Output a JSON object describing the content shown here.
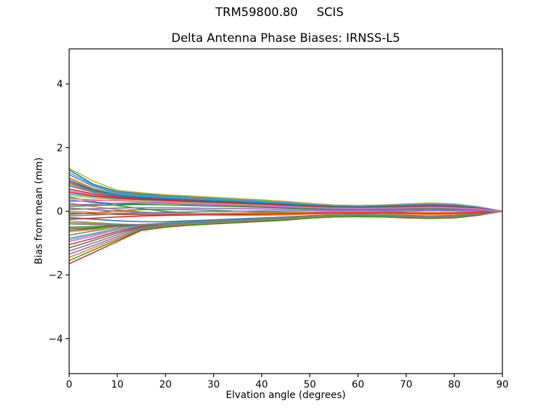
{
  "figure": {
    "suptitle": "TRM59800.80     SCIS",
    "background": "#ffffff",
    "axis_color": "#000000"
  },
  "chart_data": {
    "type": "line",
    "title": "Delta Antenna Phase Biases: IRNSS-L5",
    "xlabel": "Elvation angle (degrees)",
    "ylabel": "Bias from mean (mm)",
    "xlim": [
      0,
      90
    ],
    "ylim": [
      -5.1,
      5.1
    ],
    "xticks": [
      0,
      10,
      20,
      30,
      40,
      50,
      60,
      70,
      80,
      90
    ],
    "yticks": [
      -4,
      -2,
      0,
      2,
      4
    ],
    "grid": false,
    "legend": "none",
    "palette": [
      "#1f77b4",
      "#ff7f0e",
      "#2ca02c",
      "#d62728",
      "#9467bd",
      "#8c564b",
      "#e377c2",
      "#7f7f7f",
      "#bcbd22",
      "#17becf"
    ],
    "x": [
      0,
      5,
      10,
      15,
      20,
      25,
      30,
      35,
      40,
      45,
      50,
      55,
      60,
      65,
      70,
      75,
      80,
      85,
      90
    ],
    "series": [
      [
        1.3,
        0.85,
        0.62,
        0.55,
        0.5,
        0.46,
        0.43,
        0.39,
        0.35,
        0.3,
        0.24,
        0.19,
        0.18,
        0.19,
        0.23,
        0.25,
        0.23,
        0.14,
        0
      ],
      [
        1.05,
        0.72,
        0.55,
        0.48,
        0.44,
        0.4,
        0.37,
        0.34,
        0.31,
        0.26,
        0.21,
        0.17,
        0.15,
        0.17,
        0.2,
        0.22,
        0.2,
        0.12,
        0
      ],
      [
        -0.1,
        -0.05,
        0.02,
        0.05,
        0.06,
        0.05,
        0.03,
        0.0,
        -0.02,
        -0.03,
        -0.04,
        -0.04,
        -0.03,
        -0.02,
        0.0,
        0.02,
        0.02,
        0.01,
        0
      ],
      [
        -1.65,
        -1.3,
        -0.95,
        -0.6,
        -0.5,
        -0.44,
        -0.4,
        -0.36,
        -0.32,
        -0.28,
        -0.22,
        -0.18,
        -0.17,
        -0.18,
        -0.21,
        -0.23,
        -0.21,
        -0.13,
        0
      ],
      [
        -1.35,
        -1.08,
        -0.8,
        -0.55,
        -0.46,
        -0.41,
        -0.37,
        -0.33,
        -0.29,
        -0.25,
        -0.2,
        -0.16,
        -0.15,
        -0.16,
        -0.19,
        -0.21,
        -0.19,
        -0.12,
        0
      ],
      [
        -1.15,
        -0.92,
        -0.68,
        -0.5,
        -0.43,
        -0.38,
        -0.34,
        -0.3,
        -0.26,
        -0.22,
        -0.18,
        -0.14,
        -0.13,
        -0.14,
        -0.17,
        -0.19,
        -0.17,
        -0.1,
        0
      ],
      [
        -0.95,
        -0.78,
        -0.58,
        -0.45,
        -0.4,
        -0.36,
        -0.32,
        -0.28,
        -0.24,
        -0.2,
        -0.16,
        -0.13,
        -0.12,
        -0.13,
        -0.15,
        -0.17,
        -0.15,
        -0.09,
        0
      ],
      [
        -0.75,
        -0.62,
        -0.5,
        -0.42,
        -0.37,
        -0.33,
        -0.29,
        -0.26,
        -0.22,
        -0.19,
        -0.15,
        -0.12,
        -0.11,
        -0.12,
        -0.14,
        -0.16,
        -0.14,
        -0.08,
        0
      ],
      [
        1.35,
        0.95,
        0.66,
        0.58,
        0.52,
        0.48,
        0.44,
        0.4,
        0.36,
        0.31,
        0.25,
        0.2,
        0.18,
        0.2,
        0.23,
        0.26,
        0.23,
        0.14,
        0
      ],
      [
        1.22,
        0.82,
        0.6,
        0.52,
        0.47,
        0.43,
        0.4,
        0.36,
        0.32,
        0.28,
        0.22,
        0.18,
        0.16,
        0.18,
        0.21,
        0.23,
        0.21,
        0.13,
        0
      ],
      [
        0.8,
        0.6,
        0.48,
        0.42,
        0.38,
        0.35,
        0.32,
        0.29,
        0.26,
        0.22,
        0.18,
        0.14,
        0.13,
        0.14,
        0.17,
        0.19,
        0.17,
        0.1,
        0
      ],
      [
        0.85,
        0.63,
        0.5,
        0.44,
        0.4,
        0.36,
        0.33,
        0.3,
        0.27,
        0.23,
        0.18,
        0.15,
        0.13,
        0.15,
        0.17,
        0.19,
        0.17,
        0.11,
        0
      ],
      [
        0.45,
        0.3,
        0.18,
        0.08,
        0.0,
        -0.06,
        -0.1,
        -0.12,
        -0.12,
        -0.11,
        -0.09,
        -0.07,
        -0.06,
        -0.07,
        -0.08,
        -0.09,
        -0.08,
        -0.05,
        0
      ],
      [
        0.95,
        0.68,
        0.52,
        0.45,
        0.41,
        0.37,
        0.34,
        0.31,
        0.27,
        0.23,
        0.19,
        0.15,
        0.14,
        0.15,
        0.18,
        0.2,
        0.18,
        0.11,
        0
      ],
      [
        1.15,
        0.78,
        0.58,
        0.5,
        0.45,
        0.41,
        0.38,
        0.34,
        0.3,
        0.26,
        0.21,
        0.17,
        0.15,
        0.17,
        0.2,
        0.22,
        0.2,
        0.12,
        0
      ],
      [
        -0.6,
        -0.55,
        -0.48,
        -0.42,
        -0.38,
        -0.34,
        -0.3,
        -0.26,
        -0.23,
        -0.19,
        -0.15,
        -0.12,
        -0.11,
        -0.12,
        -0.14,
        -0.15,
        -0.14,
        -0.08,
        0
      ],
      [
        0.65,
        0.52,
        0.43,
        0.38,
        0.35,
        0.32,
        0.29,
        0.26,
        0.23,
        0.2,
        0.16,
        0.13,
        0.12,
        0.13,
        0.15,
        0.17,
        0.15,
        0.09,
        0
      ],
      [
        -0.4,
        -0.42,
        -0.44,
        -0.44,
        -0.42,
        -0.38,
        -0.33,
        -0.28,
        -0.24,
        -0.2,
        -0.16,
        -0.13,
        -0.12,
        -0.13,
        -0.15,
        -0.17,
        -0.15,
        -0.09,
        0
      ],
      [
        -0.3,
        -0.35,
        -0.4,
        -0.43,
        -0.42,
        -0.39,
        -0.34,
        -0.29,
        -0.25,
        -0.21,
        -0.17,
        -0.13,
        -0.12,
        -0.13,
        -0.16,
        -0.18,
        -0.16,
        -0.1,
        0
      ],
      [
        1.0,
        0.7,
        0.54,
        0.47,
        0.42,
        0.38,
        0.35,
        0.32,
        0.28,
        0.24,
        0.19,
        0.16,
        0.14,
        0.16,
        0.18,
        0.2,
        0.18,
        0.11,
        0
      ],
      [
        0.35,
        0.28,
        0.24,
        0.22,
        0.2,
        0.18,
        0.16,
        0.14,
        0.12,
        0.1,
        0.08,
        0.07,
        0.06,
        0.07,
        0.08,
        0.09,
        0.08,
        0.05,
        0
      ],
      [
        0.25,
        0.15,
        0.05,
        -0.02,
        -0.07,
        -0.1,
        -0.12,
        -0.13,
        -0.12,
        -0.11,
        -0.09,
        -0.07,
        -0.07,
        -0.07,
        -0.09,
        -0.1,
        -0.09,
        -0.05,
        0
      ],
      [
        0.15,
        0.18,
        0.2,
        0.21,
        0.2,
        0.19,
        0.17,
        0.15,
        0.13,
        0.11,
        0.09,
        0.07,
        0.07,
        0.07,
        0.09,
        0.1,
        0.09,
        0.05,
        0
      ],
      [
        0.7,
        0.55,
        0.45,
        0.4,
        0.36,
        0.33,
        0.3,
        0.27,
        0.24,
        0.2,
        0.16,
        0.13,
        0.12,
        0.13,
        0.16,
        0.17,
        0.16,
        0.09,
        0
      ],
      [
        0.05,
        0.08,
        0.1,
        0.11,
        0.11,
        0.1,
        0.09,
        0.08,
        0.07,
        0.06,
        0.05,
        0.04,
        0.04,
        0.04,
        0.05,
        0.05,
        0.05,
        0.03,
        0
      ],
      [
        -0.05,
        -0.08,
        -0.1,
        -0.11,
        -0.11,
        -0.1,
        -0.09,
        -0.08,
        -0.07,
        -0.06,
        -0.05,
        -0.04,
        -0.04,
        -0.04,
        -0.05,
        -0.05,
        -0.05,
        -0.03,
        0
      ],
      [
        0.3,
        0.33,
        0.35,
        0.34,
        0.32,
        0.29,
        0.26,
        0.23,
        0.2,
        0.17,
        0.14,
        0.11,
        0.1,
        0.11,
        0.13,
        0.14,
        0.13,
        0.08,
        0
      ],
      [
        0.1,
        0.05,
        0.0,
        -0.04,
        -0.06,
        -0.07,
        -0.07,
        -0.06,
        -0.06,
        -0.05,
        -0.04,
        -0.03,
        -0.03,
        -0.03,
        -0.04,
        -0.04,
        -0.04,
        -0.02,
        0
      ],
      [
        0.5,
        0.42,
        0.37,
        0.34,
        0.31,
        0.28,
        0.26,
        0.23,
        0.2,
        0.17,
        0.14,
        0.11,
        0.1,
        0.11,
        0.13,
        0.14,
        0.13,
        0.08,
        0
      ],
      [
        0.55,
        0.46,
        0.4,
        0.36,
        0.33,
        0.3,
        0.27,
        0.25,
        0.22,
        0.18,
        0.15,
        0.12,
        0.11,
        0.12,
        0.14,
        0.15,
        0.14,
        0.08,
        0
      ],
      [
        -0.2,
        -0.25,
        -0.3,
        -0.33,
        -0.33,
        -0.3,
        -0.27,
        -0.24,
        -0.21,
        -0.18,
        -0.14,
        -0.11,
        -0.1,
        -0.11,
        -0.13,
        -0.15,
        -0.13,
        -0.08,
        0
      ],
      [
        0.0,
        -0.03,
        -0.06,
        -0.08,
        -0.08,
        -0.08,
        -0.07,
        -0.06,
        -0.05,
        -0.05,
        -0.04,
        -0.03,
        -0.03,
        -0.03,
        -0.04,
        -0.04,
        -0.04,
        -0.02,
        0
      ],
      [
        -0.5,
        -0.48,
        -0.45,
        -0.42,
        -0.39,
        -0.35,
        -0.31,
        -0.27,
        -0.23,
        -0.19,
        -0.15,
        -0.12,
        -0.11,
        -0.12,
        -0.14,
        -0.16,
        -0.14,
        -0.09,
        0
      ],
      [
        -0.25,
        -0.22,
        -0.18,
        -0.15,
        -0.13,
        -0.12,
        -0.11,
        -0.1,
        -0.09,
        -0.08,
        -0.06,
        -0.05,
        -0.05,
        -0.05,
        -0.06,
        -0.07,
        -0.06,
        -0.04,
        0
      ],
      [
        -0.15,
        -0.12,
        -0.08,
        -0.05,
        -0.03,
        -0.02,
        -0.01,
        0.0,
        0.01,
        0.01,
        0.01,
        0.01,
        0.01,
        0.01,
        0.01,
        0.02,
        0.01,
        0.01,
        0
      ],
      [
        -1.05,
        -0.85,
        -0.63,
        -0.47,
        -0.41,
        -0.37,
        -0.33,
        -0.29,
        -0.25,
        -0.21,
        -0.17,
        -0.14,
        -0.12,
        -0.14,
        -0.16,
        -0.18,
        -0.16,
        -0.1,
        0
      ],
      [
        -0.9,
        -0.74,
        -0.56,
        -0.44,
        -0.39,
        -0.35,
        -0.31,
        -0.27,
        -0.23,
        -0.2,
        -0.16,
        -0.13,
        -0.11,
        -0.13,
        -0.15,
        -0.16,
        -0.15,
        -0.09,
        0
      ],
      [
        -1.25,
        -1.0,
        -0.74,
        -0.52,
        -0.44,
        -0.39,
        -0.35,
        -0.31,
        -0.27,
        -0.23,
        -0.19,
        -0.15,
        -0.14,
        -0.15,
        -0.18,
        -0.2,
        -0.18,
        -0.11,
        0
      ],
      [
        -0.65,
        -0.58,
        -0.49,
        -0.43,
        -0.38,
        -0.34,
        -0.3,
        -0.27,
        -0.23,
        -0.2,
        -0.16,
        -0.13,
        -0.11,
        -0.13,
        -0.15,
        -0.16,
        -0.15,
        -0.09,
        0
      ],
      [
        -0.85,
        -0.7,
        -0.54,
        -0.43,
        -0.38,
        -0.34,
        -0.31,
        -0.27,
        -0.23,
        -0.2,
        -0.16,
        -0.13,
        -0.11,
        -0.12,
        -0.15,
        -0.16,
        -0.15,
        -0.09,
        0
      ],
      [
        0.9,
        0.65,
        0.51,
        0.44,
        0.4,
        0.36,
        0.33,
        0.3,
        0.26,
        0.22,
        0.18,
        0.15,
        0.13,
        0.15,
        0.17,
        0.19,
        0.17,
        0.1,
        0
      ],
      [
        -1.45,
        -1.15,
        -0.85,
        -0.57,
        -0.47,
        -0.42,
        -0.38,
        -0.34,
        -0.3,
        -0.26,
        -0.21,
        -0.17,
        -0.15,
        -0.17,
        -0.2,
        -0.22,
        -0.2,
        -0.12,
        0
      ],
      [
        -1.55,
        -1.22,
        -0.9,
        -0.58,
        -0.48,
        -0.43,
        -0.39,
        -0.35,
        -0.31,
        -0.27,
        -0.22,
        -0.18,
        -0.16,
        -0.17,
        -0.2,
        -0.22,
        -0.2,
        -0.12,
        0
      ],
      [
        0.6,
        0.48,
        0.41,
        0.37,
        0.34,
        0.31,
        0.28,
        0.25,
        0.22,
        0.19,
        0.15,
        0.12,
        0.11,
        0.12,
        0.14,
        0.16,
        0.14,
        0.09,
        0
      ],
      [
        0.2,
        0.22,
        0.25,
        0.26,
        0.25,
        0.23,
        0.21,
        0.18,
        0.16,
        0.13,
        0.11,
        0.09,
        0.08,
        0.09,
        0.1,
        0.11,
        0.1,
        0.06,
        0
      ],
      [
        -0.55,
        -0.52,
        -0.47,
        -0.43,
        -0.4,
        -0.36,
        -0.32,
        -0.28,
        -0.24,
        -0.2,
        -0.16,
        -0.13,
        -0.12,
        -0.13,
        -0.15,
        -0.17,
        -0.15,
        -0.09,
        0
      ],
      [
        0.4,
        0.36,
        0.33,
        0.3,
        0.28,
        0.25,
        0.23,
        0.2,
        0.18,
        0.15,
        0.12,
        0.1,
        0.09,
        0.1,
        0.11,
        0.13,
        0.11,
        0.07,
        0
      ],
      [
        -0.35,
        -0.38,
        -0.41,
        -0.42,
        -0.41,
        -0.37,
        -0.33,
        -0.28,
        -0.24,
        -0.2,
        -0.16,
        -0.13,
        -0.12,
        -0.13,
        -0.15,
        -0.17,
        -0.15,
        -0.09,
        0
      ]
    ]
  }
}
